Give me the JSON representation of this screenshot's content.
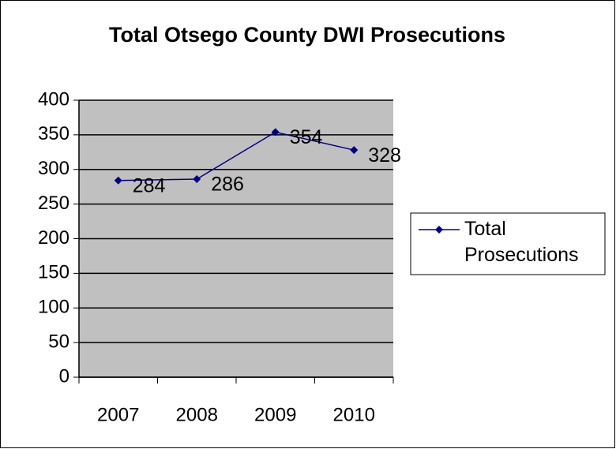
{
  "chart_data": {
    "type": "line",
    "title": "Total Otsego County DWI Prosecutions",
    "categories": [
      "2007",
      "2008",
      "2009",
      "2010"
    ],
    "series": [
      {
        "name": "Total Prosecutions",
        "color": "#000080",
        "values": [
          284,
          286,
          354,
          328
        ]
      }
    ],
    "ylim": [
      0,
      400
    ],
    "yticks": [
      0,
      50,
      100,
      150,
      200,
      250,
      300,
      350,
      400
    ],
    "grid": true,
    "legend": "right",
    "data_labels": true
  }
}
